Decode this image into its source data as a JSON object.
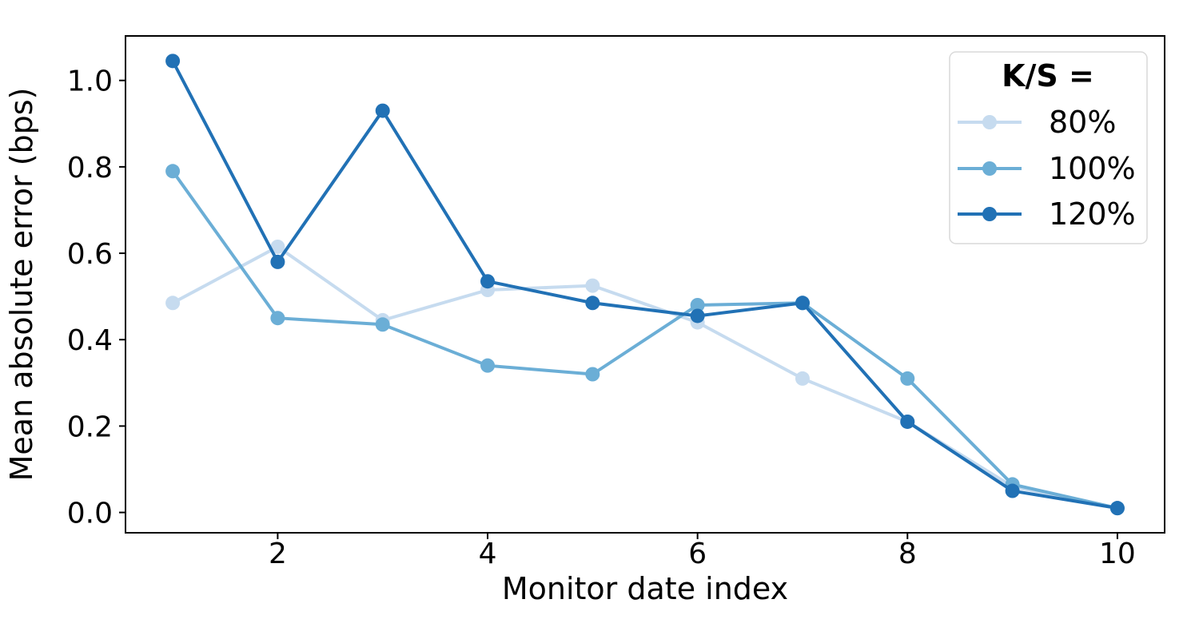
{
  "figure": {
    "background": "#ffffff",
    "frame_color": "#000000"
  },
  "chart_data": {
    "type": "line",
    "title": "",
    "xlabel": "Monitor date index",
    "ylabel": "Mean absolute error (bps)",
    "x": [
      1,
      2,
      3,
      4,
      5,
      6,
      7,
      8,
      9,
      10
    ],
    "series": [
      {
        "name": "80%",
        "color": "#c6dbef",
        "values": [
          0.485,
          0.615,
          0.445,
          0.515,
          0.525,
          0.44,
          0.31,
          0.21,
          0.06,
          0.01
        ]
      },
      {
        "name": "100%",
        "color": "#6baed6",
        "values": [
          0.79,
          0.45,
          0.435,
          0.34,
          0.32,
          0.48,
          0.485,
          0.31,
          0.065,
          0.01
        ]
      },
      {
        "name": "120%",
        "color": "#2171b5",
        "values": [
          1.045,
          0.58,
          0.93,
          0.535,
          0.485,
          0.455,
          0.485,
          0.21,
          0.05,
          0.01
        ]
      }
    ],
    "xticks": [
      "2",
      "4",
      "6",
      "8",
      "10"
    ],
    "yticks": [
      "0.0",
      "0.2",
      "0.4",
      "0.6",
      "0.8",
      "1.0"
    ],
    "xlim": [
      0.55,
      10.45
    ],
    "ylim": [
      -0.047,
      1.103
    ],
    "grid": false,
    "marker": "circle",
    "marker_radius": 9,
    "line_width": 4,
    "legend": {
      "title": "K/S =",
      "position": "upper-right"
    }
  }
}
